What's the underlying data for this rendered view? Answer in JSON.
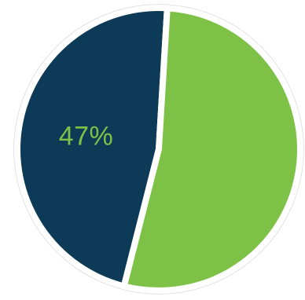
{
  "chart_data": {
    "type": "pie",
    "slices": [
      {
        "value": 47,
        "label": "47%",
        "color": "#0c3a57"
      },
      {
        "value": 53,
        "label": "",
        "color": "#7dc246"
      }
    ],
    "label_color": "#7dc246",
    "ring_color": "#d9d9d9",
    "background": "#ffffff"
  }
}
